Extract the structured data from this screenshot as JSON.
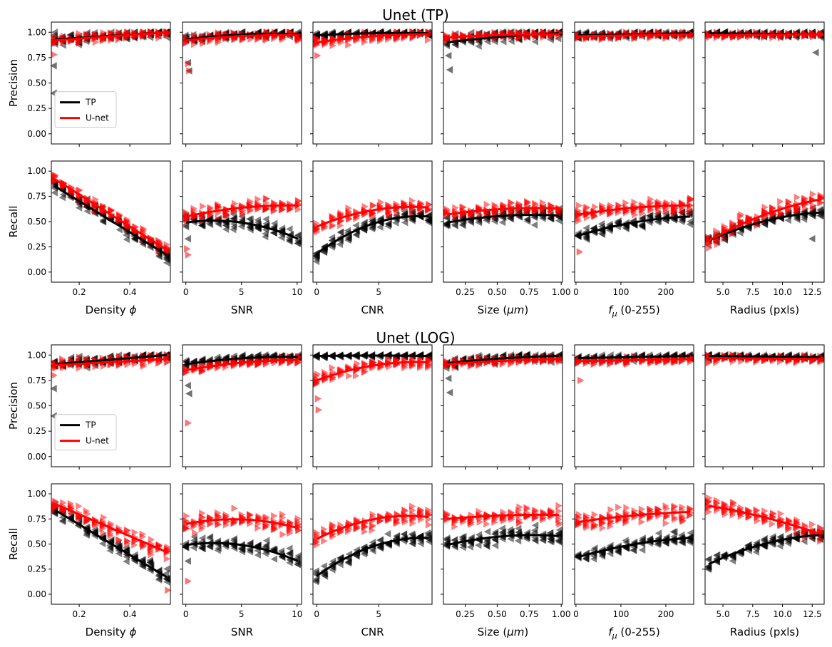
{
  "colors": {
    "tp": "#000000",
    "unet": "#ff0000"
  },
  "chart_data": {
    "type": "scatter",
    "layout": "2 groups x 2 rows x 6 columns, y-axes shared across each row",
    "series_styles": [
      {
        "name": "TP",
        "color": "#000000",
        "marker": "left-triangle"
      },
      {
        "name": "U-net",
        "color": "#ff0000",
        "marker": "right-triangle"
      }
    ],
    "legend": {
      "entries": [
        "TP",
        "U-net"
      ],
      "location": "lower-left of first Precision panel"
    },
    "columns": [
      {
        "xlabel_prefix": "Density ",
        "xlabel_var": "ϕ",
        "xlabel_suffix": "",
        "xlim": [
          0.09,
          0.56
        ],
        "xticks": [
          0.2,
          0.4
        ],
        "xticklabels": [
          "0.2",
          "0.4"
        ]
      },
      {
        "xlabel_prefix": "SNR",
        "xlabel_var": "",
        "xlabel_suffix": "",
        "xlim": [
          -0.3,
          10.4
        ],
        "xticks": [
          0,
          5,
          10
        ],
        "xticklabels": [
          "0",
          "5",
          "10"
        ]
      },
      {
        "xlabel_prefix": "CNR",
        "xlabel_var": "",
        "xlabel_suffix": "",
        "xlim": [
          -0.3,
          9.3
        ],
        "xticks": [
          0,
          5
        ],
        "xticklabels": [
          "0",
          "5"
        ]
      },
      {
        "xlabel_prefix": "Size (",
        "xlabel_var": "μm",
        "xlabel_suffix": ")",
        "xlim": [
          0.08,
          1.01
        ],
        "xticks": [
          0.25,
          0.5,
          0.75,
          1.0
        ],
        "xticklabels": [
          "0.25",
          "0.50",
          "0.75",
          "1.00"
        ]
      },
      {
        "xlabel_prefix": "",
        "xlabel_var": "f",
        "xlabel_sub": "μ",
        "xlabel_suffix": " (0-255)",
        "xlim": [
          -3,
          262
        ],
        "xticks": [
          0,
          100,
          200
        ],
        "xticklabels": [
          "0",
          "100",
          "200"
        ]
      },
      {
        "xlabel_prefix": "Radius (pxls)",
        "xlabel_var": "",
        "xlabel_suffix": "",
        "xlim": [
          3.5,
          13.5
        ],
        "xticks": [
          5.0,
          7.5,
          10.0,
          12.5
        ],
        "xticklabels": [
          "5.0",
          "7.5",
          "10.0",
          "12.5"
        ]
      }
    ],
    "rows": [
      {
        "ylabel": "Precision",
        "ylim": [
          -0.1,
          1.1
        ],
        "yticks": [
          0,
          0.25,
          0.5,
          0.75,
          1.0
        ],
        "yticklabels": [
          "0.00",
          "0.25",
          "0.50",
          "0.75",
          "1.00"
        ]
      },
      {
        "ylabel": "Recall",
        "ylim": [
          -0.1,
          1.1
        ],
        "yticks": [
          0,
          0.25,
          0.5,
          0.75,
          1.0
        ],
        "yticklabels": [
          "0.00",
          "0.25",
          "0.50",
          "0.75",
          "1.00"
        ]
      }
    ],
    "groups": [
      {
        "title": "Unet (TP)",
        "panels": [
          [
            {
              "tp": [
                0.93,
                1.0
              ],
              "unet": [
                0.92,
                1.0
              ],
              "tp_spread": 0.06,
              "unet_spread": 0.05,
              "tp_outliers": [
                [
                  0.1,
                  0.67
                ],
                [
                  0.1,
                  0.4
                ]
              ],
              "unet_outliers": [
                [
                  0.1,
                  0.78
                ]
              ]
            },
            {
              "tp": [
                0.93,
                1.0,
                0.98
              ],
              "unet": [
                0.92,
                0.98,
                0.97
              ],
              "tp_spread": 0.04,
              "unet_spread": 0.05,
              "tp_outliers": [
                [
                  0.2,
                  0.7
                ],
                [
                  0.3,
                  0.62
                ]
              ],
              "unet_outliers": [
                [
                  0.2,
                  0.69
                ],
                [
                  0.3,
                  0.62
                ]
              ]
            },
            {
              "tp": [
                0.97,
                1.0,
                0.99
              ],
              "unet": [
                0.9,
                0.98,
                0.98
              ],
              "tp_spread": 0.03,
              "unet_spread": 0.05,
              "tp_outliers": [],
              "unet_outliers": [
                [
                  0.05,
                  0.77
                ]
              ]
            },
            {
              "tp": [
                0.9,
                0.97,
                0.99
              ],
              "unet": [
                0.95,
                0.98,
                0.98
              ],
              "tp_spread": 0.07,
              "unet_spread": 0.04,
              "tp_outliers": [
                [
                  0.12,
                  0.77
                ],
                [
                  0.13,
                  0.63
                ]
              ],
              "unet_outliers": []
            },
            {
              "tp": [
                0.97,
                0.99
              ],
              "unet": [
                0.96,
                0.98
              ],
              "tp_spread": 0.04,
              "unet_spread": 0.04,
              "tp_outliers": [],
              "unet_outliers": []
            },
            {
              "tp": [
                0.99,
                0.98
              ],
              "unet": [
                0.97,
                0.98
              ],
              "tp_spread": 0.04,
              "unet_spread": 0.03,
              "tp_outliers": [
                [
                  12.8,
                  0.8
                ]
              ],
              "unet_outliers": []
            }
          ],
          [
            {
              "tp": [
                0.85,
                0.17
              ],
              "unet": [
                0.92,
                0.22
              ],
              "tp_spread": 0.07,
              "unet_spread": 0.06,
              "tp_outliers": [],
              "unet_outliers": []
            },
            {
              "tp": [
                0.49,
                0.57,
                0.33
              ],
              "unet": [
                0.55,
                0.67,
                0.66
              ],
              "tp_spread": 0.08,
              "unet_spread": 0.07,
              "tp_outliers": [
                [
                  0.2,
                  0.33
                ]
              ],
              "unet_outliers": [
                [
                  0.1,
                  0.23
                ],
                [
                  0.2,
                  0.17
                ]
              ]
            },
            {
              "tp": [
                0.18,
                0.59,
                0.55
              ],
              "unet": [
                0.45,
                0.68,
                0.64
              ],
              "tp_spread": 0.07,
              "unet_spread": 0.08,
              "tp_outliers": [],
              "unet_outliers": []
            },
            {
              "tp": [
                0.49,
                0.59,
                0.56
              ],
              "unet": [
                0.57,
                0.65,
                0.63
              ],
              "tp_spread": 0.08,
              "unet_spread": 0.07,
              "tp_outliers": [],
              "unet_outliers": []
            },
            {
              "tp": [
                0.36,
                0.53,
                0.55
              ],
              "unet": [
                0.57,
                0.66,
                0.66
              ],
              "tp_spread": 0.07,
              "unet_spread": 0.07,
              "tp_outliers": [],
              "unet_outliers": [
                [
                  8,
                  0.2
                ]
              ]
            },
            {
              "tp": [
                0.31,
                0.56,
                0.59
              ],
              "unet": [
                0.31,
                0.62,
                0.72
              ],
              "tp_spread": 0.06,
              "unet_spread": 0.08,
              "tp_outliers": [
                [
                  12.5,
                  0.33
                ]
              ],
              "unet_outliers": []
            }
          ]
        ]
      },
      {
        "title": "Unet (LOG)",
        "panels": [
          [
            {
              "tp": [
                0.91,
                1.0
              ],
              "unet": [
                0.9,
                0.96
              ],
              "tp_spread": 0.05,
              "unet_spread": 0.06,
              "tp_outliers": [
                [
                  0.1,
                  0.67
                ],
                [
                  0.1,
                  0.4
                ]
              ],
              "unet_outliers": [
                [
                  0.1,
                  0.8
                ]
              ]
            },
            {
              "tp": [
                0.91,
                0.99,
                0.98
              ],
              "unet": [
                0.85,
                0.95,
                0.95
              ],
              "tp_spread": 0.04,
              "unet_spread": 0.05,
              "tp_outliers": [
                [
                  0.2,
                  0.7
                ],
                [
                  0.3,
                  0.62
                ]
              ],
              "unet_outliers": [
                [
                  0.2,
                  0.33
                ]
              ]
            },
            {
              "tp": [
                0.99,
                1.0,
                0.99
              ],
              "unet": [
                0.75,
                0.95,
                0.93
              ],
              "tp_spread": 0.02,
              "unet_spread": 0.06,
              "tp_outliers": [],
              "unet_outliers": [
                [
                  0.1,
                  0.57
                ],
                [
                  0.15,
                  0.46
                ]
              ]
            },
            {
              "tp": [
                0.92,
                0.98,
                0.99
              ],
              "unet": [
                0.91,
                0.95,
                0.96
              ],
              "tp_spread": 0.05,
              "unet_spread": 0.04,
              "tp_outliers": [
                [
                  0.12,
                  0.77
                ],
                [
                  0.13,
                  0.63
                ]
              ],
              "unet_outliers": []
            },
            {
              "tp": [
                0.97,
                0.99
              ],
              "unet": [
                0.94,
                0.96
              ],
              "tp_spread": 0.04,
              "unet_spread": 0.04,
              "tp_outliers": [],
              "unet_outliers": [
                [
                  10,
                  0.75
                ]
              ]
            },
            {
              "tp": [
                0.99,
                0.98
              ],
              "unet": [
                0.97,
                0.96
              ],
              "tp_spread": 0.03,
              "unet_spread": 0.04,
              "tp_outliers": [],
              "unet_outliers": []
            }
          ],
          [
            {
              "tp": [
                0.84,
                0.17
              ],
              "unet": [
                0.9,
                0.42
              ],
              "tp_spread": 0.07,
              "unet_spread": 0.08,
              "tp_outliers": [],
              "unet_outliers": [
                [
                  0.55,
                  0.04
                ]
              ]
            },
            {
              "tp": [
                0.49,
                0.57,
                0.33
              ],
              "unet": [
                0.7,
                0.81,
                0.66
              ],
              "tp_spread": 0.08,
              "unet_spread": 0.09,
              "tp_outliers": [
                [
                  0.2,
                  0.33
                ]
              ],
              "unet_outliers": [
                [
                  0.2,
                  0.13
                ]
              ]
            },
            {
              "tp": [
                0.18,
                0.58,
                0.56
              ],
              "unet": [
                0.55,
                0.83,
                0.77
              ],
              "tp_spread": 0.07,
              "unet_spread": 0.09,
              "tp_outliers": [],
              "unet_outliers": []
            },
            {
              "tp": [
                0.49,
                0.62,
                0.58
              ],
              "unet": [
                0.75,
                0.8,
                0.79
              ],
              "tp_spread": 0.08,
              "unet_spread": 0.08,
              "tp_outliers": [],
              "unet_outliers": []
            },
            {
              "tp": [
                0.37,
                0.53,
                0.56
              ],
              "unet": [
                0.72,
                0.8,
                0.82
              ],
              "tp_spread": 0.07,
              "unet_spread": 0.09,
              "tp_outliers": [],
              "unet_outliers": []
            },
            {
              "tp": [
                0.3,
                0.56,
                0.59
              ],
              "unet": [
                0.88,
                0.79,
                0.6
              ],
              "tp_spread": 0.06,
              "unet_spread": 0.08,
              "tp_outliers": [],
              "unet_outliers": []
            }
          ]
        ]
      }
    ]
  }
}
